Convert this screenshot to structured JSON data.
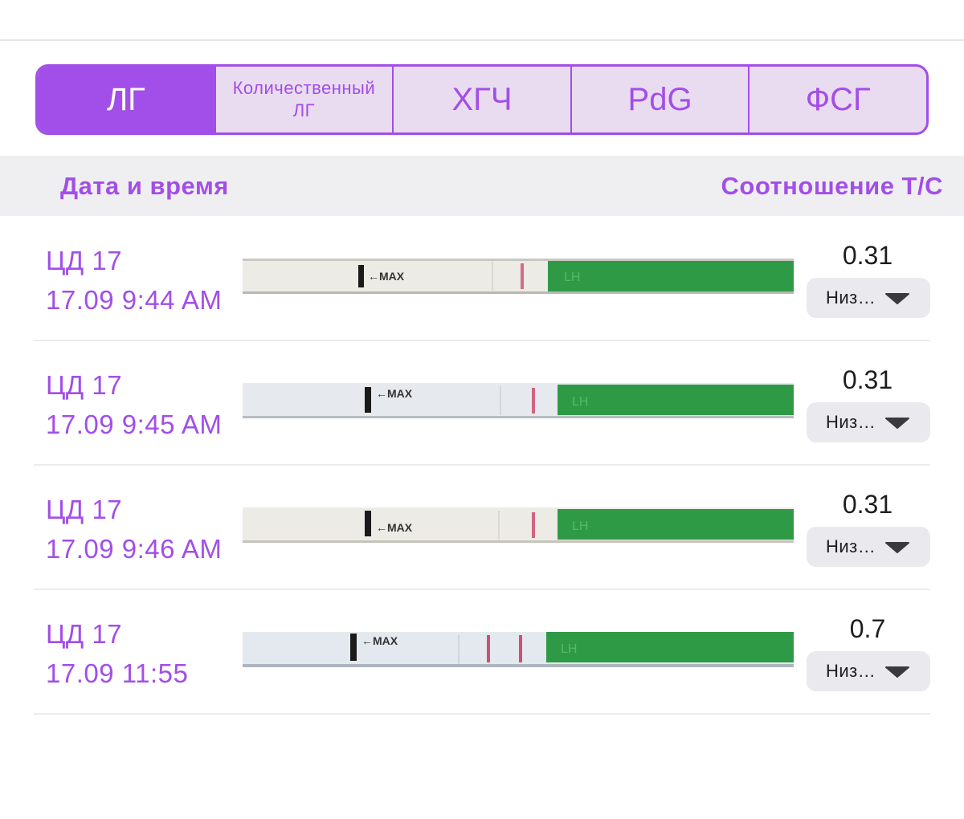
{
  "tabs": [
    {
      "label": "ЛГ",
      "active": true
    },
    {
      "label": "Количественный ЛГ",
      "active": false
    },
    {
      "label": "ХГЧ",
      "active": false
    },
    {
      "label": "PdG",
      "active": false
    },
    {
      "label": "ФСГ",
      "active": false
    }
  ],
  "table_header": {
    "left": "Дата и время",
    "right": "Соотношение Т/С"
  },
  "rows": [
    {
      "cycle_day": "ЦД 17",
      "datetime": "17.09 9:44 AM",
      "ratio": "0.31",
      "level": "Низ…",
      "strip_text": "←MAX",
      "strip_lh": "LH"
    },
    {
      "cycle_day": "ЦД 17",
      "datetime": "17.09 9:45 AM",
      "ratio": "0.31",
      "level": "Низ…",
      "strip_text": "←MAX",
      "strip_lh": "LH"
    },
    {
      "cycle_day": "ЦД 17",
      "datetime": "17.09 9:46 AM",
      "ratio": "0.31",
      "level": "Низ…",
      "strip_text": "←MAX",
      "strip_lh": "LH"
    },
    {
      "cycle_day": "ЦД 17",
      "datetime": "17.09 11:55",
      "ratio": "0.7",
      "level": "Низ…",
      "strip_text": "←MAX",
      "strip_lh": "LH"
    }
  ],
  "colors": {
    "accent": "#a24ee8",
    "strip_green": "#2f9a45",
    "test_line": "#c9355f"
  },
  "icons": {
    "dropdown": "triangle-down-icon"
  }
}
